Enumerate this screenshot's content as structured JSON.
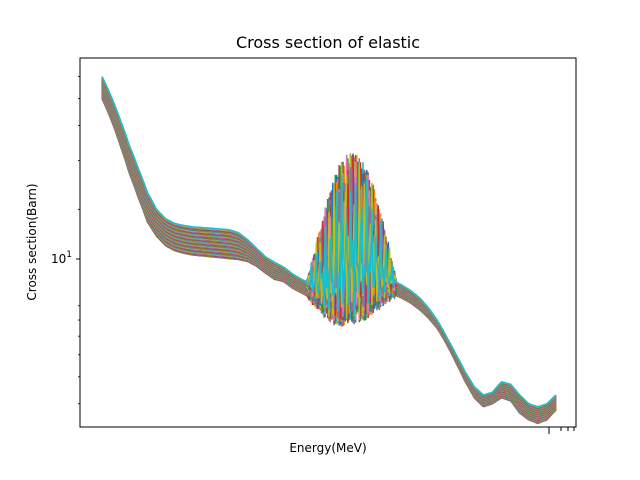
{
  "chart_data": {
    "type": "line",
    "title": "Cross section of elastic",
    "xlabel": "Energy(MeV)",
    "ylabel": "Cross section(Barn)",
    "xscale": "log",
    "yscale": "log",
    "x_tick_labels": [],
    "y_tick_labels": [
      {
        "value": 10,
        "label": "10",
        "exponent": "1"
      }
    ],
    "ylim": [
      3.3,
      70
    ],
    "grid": false,
    "legend": "none",
    "series_count": 80,
    "palette": [
      "#1f77b4",
      "#ff7f0e",
      "#2ca02c",
      "#d62728",
      "#9467bd",
      "#8c564b",
      "#e377c2",
      "#7f7f7f",
      "#bcbd22",
      "#17becf"
    ],
    "envelope": {
      "x": [
        0,
        0.02,
        0.04,
        0.06,
        0.08,
        0.1,
        0.12,
        0.14,
        0.16,
        0.18,
        0.2,
        0.22,
        0.24,
        0.26,
        0.28,
        0.3,
        0.32,
        0.34,
        0.36,
        0.38,
        0.4,
        0.42,
        0.44,
        0.46,
        0.48,
        0.5,
        0.52,
        0.54,
        0.56,
        0.58,
        0.6,
        0.62,
        0.64,
        0.66,
        0.68,
        0.7,
        0.72,
        0.74,
        0.76,
        0.78,
        0.8,
        0.82,
        0.84,
        0.86,
        0.88,
        0.9,
        0.92,
        0.94,
        0.96,
        0.98,
        1.0
      ],
      "y_low": [
        50,
        42,
        34,
        27,
        22,
        18,
        16,
        14.8,
        14.2,
        13.9,
        13.7,
        13.6,
        13.5,
        13.4,
        13.3,
        13.2,
        13.0,
        12.5,
        11.8,
        11.2,
        11.0,
        10.4,
        10.0,
        9.6,
        9.4,
        9.3,
        9.5,
        10.6,
        11.0,
        11.0,
        10.6,
        10.2,
        9.9,
        9.6,
        9.2,
        8.7,
        8.1,
        7.4,
        6.5,
        5.6,
        4.8,
        4.2,
        3.9,
        4.0,
        4.2,
        4.1,
        3.7,
        3.5,
        3.4,
        3.5,
        3.8
      ],
      "y_high": [
        60,
        51,
        42,
        34,
        28,
        23,
        20,
        18.5,
        17.8,
        17.5,
        17.3,
        17.2,
        17.1,
        17.0,
        16.9,
        16.5,
        15.6,
        14.5,
        13.5,
        12.9,
        12.4,
        11.7,
        11.2,
        10.8,
        10.6,
        10.5,
        10.8,
        12.4,
        12.8,
        12.6,
        12.1,
        11.5,
        11.1,
        10.7,
        10.2,
        9.6,
        8.8,
        7.9,
        6.9,
        6.0,
        5.2,
        4.6,
        4.3,
        4.4,
        4.8,
        4.7,
        4.3,
        4.0,
        3.9,
        4.0,
        4.3
      ]
    },
    "resonance_region": {
      "x_range": [
        0.45,
        0.65
      ],
      "y_range": [
        6.5,
        32
      ]
    }
  }
}
